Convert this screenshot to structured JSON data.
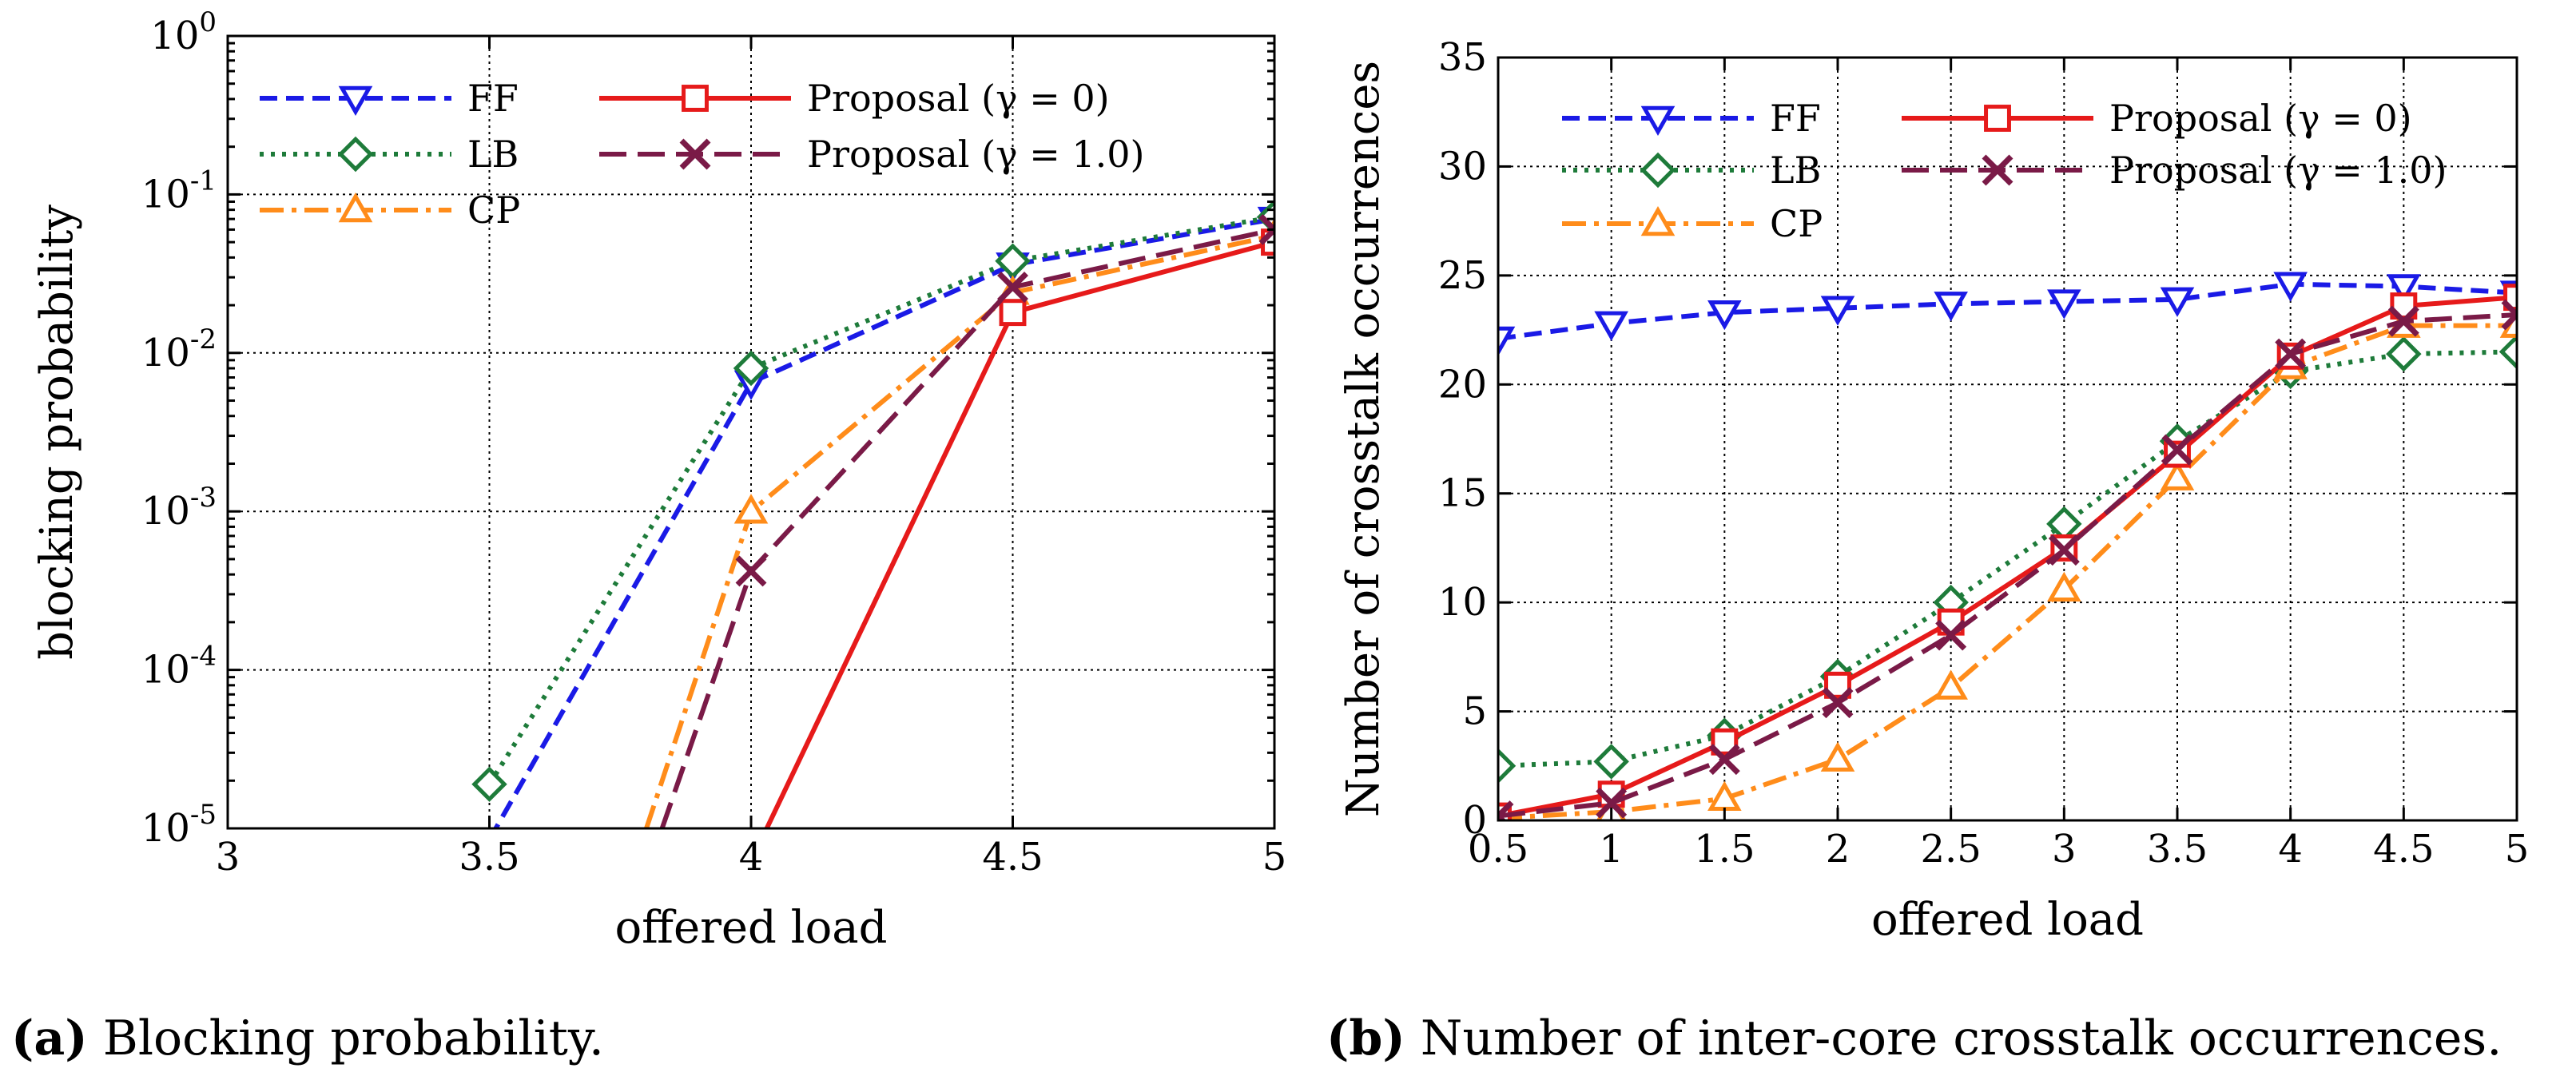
{
  "chart_data": [
    {
      "type": "line",
      "yscale": "log",
      "title": "",
      "xlabel": "offered load",
      "ylabel": "blocking probability",
      "xlim": [
        3,
        5
      ],
      "ylim": [
        1e-05,
        1
      ],
      "xticks": [
        3,
        3.5,
        4,
        4.5,
        5
      ],
      "xtick_labels": [
        "3",
        "3.5",
        "4",
        "4.5",
        "5"
      ],
      "yticks": [
        1e-05,
        0.0001,
        0.001,
        0.01,
        0.1,
        1
      ],
      "ytick_labels": [
        {
          "base": "10",
          "exp": "-5"
        },
        {
          "base": "10",
          "exp": "-4"
        },
        {
          "base": "10",
          "exp": "-3"
        },
        {
          "base": "10",
          "exp": "-2"
        },
        {
          "base": "10",
          "exp": "-1"
        },
        {
          "base": "10",
          "exp": "0"
        }
      ],
      "grid": true,
      "legend_position": "top-left",
      "caption_label": "(a)",
      "caption_text": "Blocking probability.",
      "series": [
        {
          "name": "FF",
          "color": "#1a1ae6",
          "dash": "dashed",
          "marker": "triangle-down",
          "x": [
            3.5,
            4,
            4.5,
            5
          ],
          "y": [
            8.5e-06,
            0.0065,
            0.036,
            0.07
          ]
        },
        {
          "name": "LB",
          "color": "#1e7b3a",
          "dash": "dotted",
          "marker": "diamond",
          "x": [
            3.5,
            4,
            4.5,
            5
          ],
          "y": [
            1.9e-05,
            0.008,
            0.038,
            0.072
          ]
        },
        {
          "name": "CP",
          "color": "#ff8c1a",
          "dash": "dashdot",
          "marker": "triangle-up",
          "x": [
            3.8,
            4,
            4.5,
            5
          ],
          "y": [
            1e-05,
            0.001,
            0.024,
            0.055
          ]
        },
        {
          "name": "Proposal (γ = 0)",
          "color": "#e61a1a",
          "dash": "solid",
          "marker": "square",
          "x": [
            4.03,
            4.5,
            5
          ],
          "y": [
            1e-05,
            0.018,
            0.05
          ]
        },
        {
          "name": "Proposal (γ = 1.0)",
          "color": "#7a1a47",
          "dash": "longdash",
          "marker": "x",
          "x": [
            3.83,
            4,
            4.5,
            5
          ],
          "y": [
            1e-05,
            0.00042,
            0.026,
            0.06
          ]
        }
      ]
    },
    {
      "type": "line",
      "title": "",
      "xlabel": "offered load",
      "ylabel": "Number of crosstalk occurrences",
      "xlim": [
        0.5,
        5
      ],
      "ylim": [
        0,
        35
      ],
      "xticks": [
        0.5,
        1,
        1.5,
        2,
        2.5,
        3,
        3.5,
        4,
        4.5,
        5
      ],
      "xtick_labels": [
        "0.5",
        "1",
        "1.5",
        "2",
        "2.5",
        "3",
        "3.5",
        "4",
        "4.5",
        "5"
      ],
      "yticks": [
        0,
        5,
        10,
        15,
        20,
        25,
        30,
        35
      ],
      "ytick_labels": [
        "0",
        "5",
        "10",
        "15",
        "20",
        "25",
        "30",
        "35"
      ],
      "grid": true,
      "legend_position": "top-left",
      "caption_label": "(b)",
      "caption_text": "Number of inter-core crosstalk occurrences.",
      "series": [
        {
          "name": "FF",
          "color": "#1a1ae6",
          "dash": "dashed",
          "marker": "triangle-down",
          "x": [
            0.5,
            1,
            1.5,
            2,
            2.5,
            3,
            3.5,
            4,
            4.5,
            5
          ],
          "y": [
            22.1,
            22.8,
            23.3,
            23.5,
            23.7,
            23.8,
            23.9,
            24.6,
            24.5,
            24.2
          ]
        },
        {
          "name": "LB",
          "color": "#1e7b3a",
          "dash": "dotted",
          "marker": "diamond",
          "x": [
            0.5,
            1,
            1.5,
            2,
            2.5,
            3,
            3.5,
            4,
            4.5,
            5
          ],
          "y": [
            2.5,
            2.7,
            3.9,
            6.6,
            10.0,
            13.6,
            17.4,
            20.6,
            21.4,
            21.5
          ]
        },
        {
          "name": "CP",
          "color": "#ff8c1a",
          "dash": "dashdot",
          "marker": "triangle-up",
          "x": [
            0.5,
            1,
            1.5,
            2,
            2.5,
            3,
            3.5,
            4,
            4.5,
            5
          ],
          "y": [
            0.1,
            0.4,
            1.0,
            2.8,
            6.1,
            10.6,
            15.7,
            20.8,
            22.7,
            22.7
          ]
        },
        {
          "name": "Proposal (γ = 0)",
          "color": "#e61a1a",
          "dash": "solid",
          "marker": "square",
          "x": [
            0.5,
            1,
            1.5,
            2,
            2.5,
            3,
            3.5,
            4,
            4.5,
            5
          ],
          "y": [
            0.2,
            1.2,
            3.6,
            6.2,
            9.1,
            12.5,
            16.8,
            21.3,
            23.6,
            24.0
          ]
        },
        {
          "name": "Proposal (γ = 1.0)",
          "color": "#7a1a47",
          "dash": "longdash",
          "marker": "x",
          "x": [
            0.5,
            1,
            1.5,
            2,
            2.5,
            3,
            3.5,
            4,
            4.5,
            5
          ],
          "y": [
            0.2,
            0.8,
            2.8,
            5.4,
            8.5,
            12.4,
            17.0,
            21.4,
            22.9,
            23.2
          ]
        }
      ]
    }
  ]
}
